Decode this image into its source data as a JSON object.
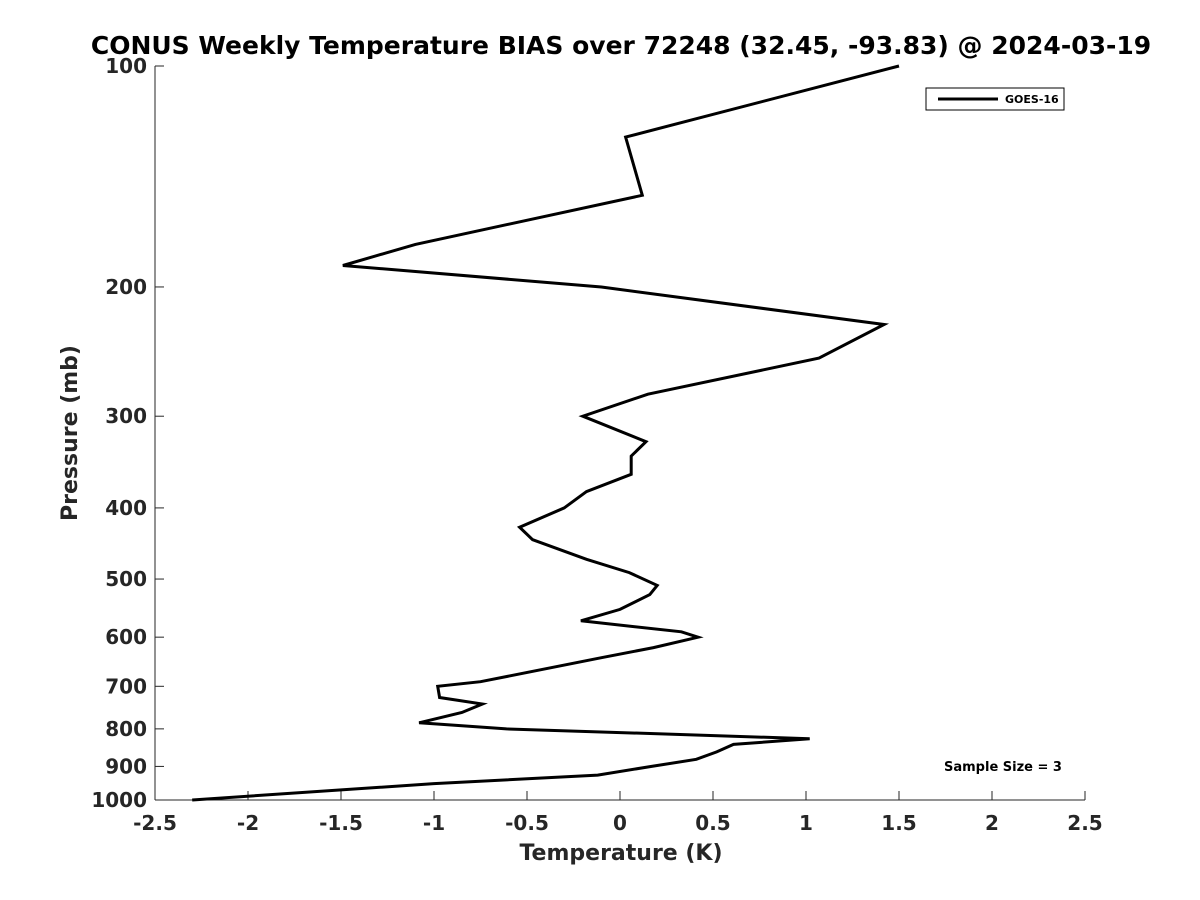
{
  "chart_data": {
    "type": "line",
    "title": "CONUS Weekly Temperature BIAS over 72248 (32.45, -93.83) @ 2024-03-19",
    "xlabel": "Temperature (K)",
    "ylabel": "Pressure (mb)",
    "xlim": [
      -2.5,
      2.5
    ],
    "ylim": [
      100,
      1000
    ],
    "yscale": "log",
    "yreversed": true,
    "grid": false,
    "xticks": [
      -2.5,
      -2,
      -1.5,
      -1,
      -0.5,
      0,
      0.5,
      1,
      1.5,
      2,
      2.5
    ],
    "xtick_labels": [
      "-2.5",
      "-2",
      "-1.5",
      "-1",
      "-0.5",
      "0",
      "0.5",
      "1",
      "1.5",
      "2",
      "2.5"
    ],
    "yticks": [
      100,
      200,
      300,
      400,
      500,
      600,
      700,
      800,
      900,
      1000
    ],
    "ytick_labels": [
      "100",
      "200",
      "300",
      "400",
      "500",
      "600",
      "700",
      "800",
      "900",
      "1000"
    ],
    "legend": {
      "location": "top-right",
      "entries": [
        "GOES-16"
      ]
    },
    "annotation": "Sample Size = 3",
    "series": [
      {
        "name": "GOES-16",
        "color": "#000000",
        "points": [
          {
            "x": 1.5,
            "y": 100
          },
          {
            "x": 0.03,
            "y": 125
          },
          {
            "x": 0.12,
            "y": 150
          },
          {
            "x": -1.1,
            "y": 175
          },
          {
            "x": -1.49,
            "y": 187
          },
          {
            "x": -0.1,
            "y": 200
          },
          {
            "x": 1.42,
            "y": 225
          },
          {
            "x": 1.07,
            "y": 250
          },
          {
            "x": 0.15,
            "y": 280
          },
          {
            "x": -0.2,
            "y": 300
          },
          {
            "x": 0.14,
            "y": 325
          },
          {
            "x": 0.06,
            "y": 340
          },
          {
            "x": 0.06,
            "y": 360
          },
          {
            "x": -0.18,
            "y": 380
          },
          {
            "x": -0.3,
            "y": 400
          },
          {
            "x": -0.54,
            "y": 425
          },
          {
            "x": -0.47,
            "y": 442
          },
          {
            "x": -0.18,
            "y": 470
          },
          {
            "x": 0.05,
            "y": 490
          },
          {
            "x": 0.2,
            "y": 510
          },
          {
            "x": 0.16,
            "y": 525
          },
          {
            "x": 0.0,
            "y": 550
          },
          {
            "x": -0.21,
            "y": 570
          },
          {
            "x": 0.33,
            "y": 590
          },
          {
            "x": 0.42,
            "y": 600
          },
          {
            "x": 0.18,
            "y": 620
          },
          {
            "x": -0.1,
            "y": 640
          },
          {
            "x": -0.75,
            "y": 690
          },
          {
            "x": -0.98,
            "y": 700
          },
          {
            "x": -0.97,
            "y": 725
          },
          {
            "x": -0.74,
            "y": 740
          },
          {
            "x": -0.85,
            "y": 760
          },
          {
            "x": -1.08,
            "y": 785
          },
          {
            "x": -0.61,
            "y": 800
          },
          {
            "x": 1.02,
            "y": 825
          },
          {
            "x": 0.61,
            "y": 840
          },
          {
            "x": 0.52,
            "y": 860
          },
          {
            "x": 0.41,
            "y": 880
          },
          {
            "x": 0.17,
            "y": 900
          },
          {
            "x": -0.12,
            "y": 925
          },
          {
            "x": -1.0,
            "y": 950
          },
          {
            "x": -2.3,
            "y": 1000
          }
        ]
      }
    ]
  }
}
